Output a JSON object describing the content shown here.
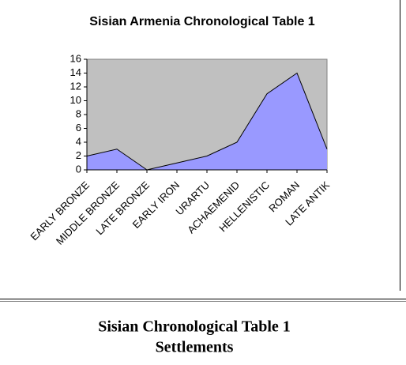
{
  "chart_data": {
    "type": "area",
    "title": "Sisian Armenia Chronological Table 1",
    "categories": [
      "EARLY BRONZE",
      "MIDDLE BRONZE",
      "LATE BRONZE",
      "EARLY IRON",
      "URARTU",
      "ACHAEMENID",
      "HELLENISTIC",
      "ROMAN",
      "LATE ANTIK"
    ],
    "values": [
      2,
      3,
      0,
      1,
      2,
      4,
      11,
      14,
      3
    ],
    "color": "#9999ff",
    "plot_background": "#c0c0c0",
    "ylim": [
      0,
      16
    ],
    "yticks": [
      0,
      2,
      4,
      6,
      8,
      10,
      12,
      14,
      16
    ]
  },
  "caption": {
    "line1": "Sisian Chronological Table 1",
    "line2": "Settlements"
  }
}
